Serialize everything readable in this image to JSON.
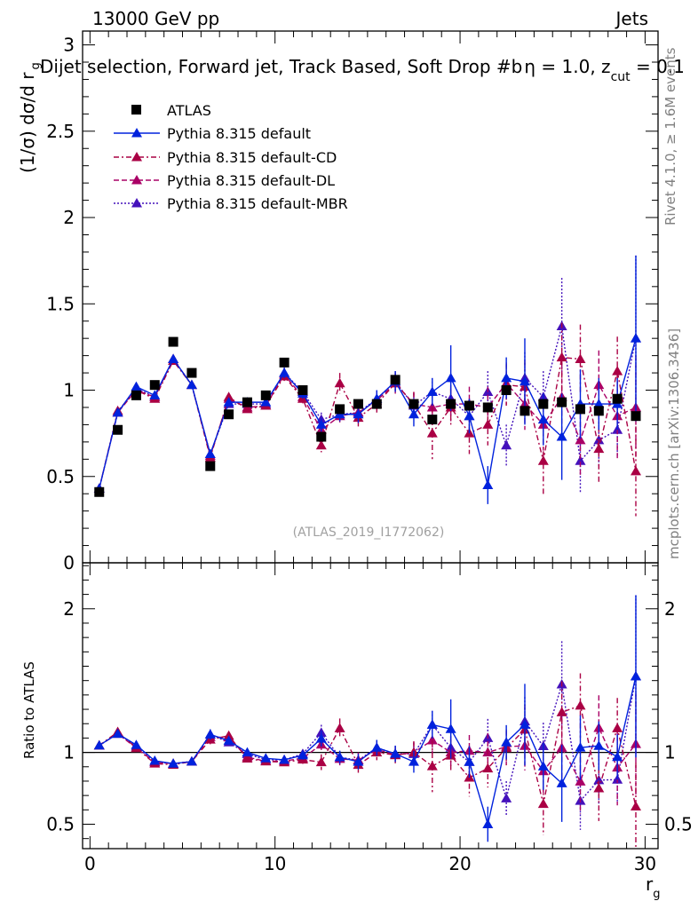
{
  "header": {
    "left": "13000 GeV pp",
    "right": "Jets",
    "title": "Dijet selection, Forward jet, Track Based, Soft Drop #b",
    "title_tail": "η = 1.0, z",
    "title_cut": "cut",
    "title_end": " = 0.1"
  },
  "side": {
    "rivet": "Rivet 4.1.0, ≥ 1.6M events",
    "mcplots": "mcplots.cern.ch [arXiv:1306.3436]"
  },
  "watermark": "(ATLAS_2019_I1772062)",
  "colors": {
    "atlas": "#000000",
    "default": "#0022dd",
    "cd": "#aa0044",
    "dl": "#aa0066",
    "mbr": "#4411bb"
  },
  "chart_data": {
    "type": "line",
    "x": [
      0.5,
      1.5,
      2.5,
      3.5,
      4.5,
      5.5,
      6.5,
      7.5,
      8.5,
      9.5,
      10.5,
      11.5,
      12.5,
      13.5,
      14.5,
      15.5,
      16.5,
      17.5,
      18.5,
      19.5,
      20.5,
      21.5,
      22.5,
      23.5,
      24.5,
      25.5,
      26.5,
      27.5,
      28.5,
      29.5
    ],
    "xlabel": "r",
    "xlabel_sub": "g",
    "xlim": [
      -0.4,
      30.7
    ],
    "xticks": [
      0,
      10,
      20,
      30
    ],
    "main": {
      "ylabel": "(1/σ) dσ/d r",
      "ylabel_sub": "g",
      "ylim": [
        0,
        3.08
      ],
      "yticks": [
        0,
        0.5,
        1,
        1.5,
        2,
        2.5,
        3
      ],
      "ytick_labels": [
        "0",
        "0.5",
        "1",
        "1.5",
        "2",
        "2.5",
        "3"
      ]
    },
    "ratio": {
      "ylabel": "Ratio to ATLAS",
      "ylim": [
        0.33,
        2.32
      ],
      "yticks": [
        0.5,
        1,
        2
      ],
      "ytick_labels": [
        "0.5",
        "1",
        "2"
      ],
      "reference": 1
    },
    "series": [
      {
        "name": "ATLAS",
        "key": "atlas",
        "values": [
          0.41,
          0.77,
          0.97,
          1.03,
          1.28,
          1.1,
          0.56,
          0.86,
          0.93,
          0.97,
          1.16,
          1.0,
          0.73,
          0.89,
          0.92,
          0.92,
          1.06,
          0.92,
          0.83,
          0.92,
          0.91,
          0.9,
          1.0,
          0.88,
          0.92,
          0.93,
          0.89,
          0.88,
          0.95,
          0.85
        ],
        "errors": [
          0.01,
          0.01,
          0.01,
          0.01,
          0.01,
          0.01,
          0.01,
          0.01,
          0.01,
          0.01,
          0.01,
          0.01,
          0.01,
          0.01,
          0.01,
          0.01,
          0.01,
          0.01,
          0.01,
          0.01,
          0.01,
          0.01,
          0.01,
          0.01,
          0.01,
          0.01,
          0.01,
          0.01,
          0.01,
          0.01
        ]
      },
      {
        "name": "Pythia 8.315 default",
        "key": "default",
        "values": [
          0.43,
          0.87,
          1.02,
          0.97,
          1.18,
          1.03,
          0.63,
          0.93,
          0.93,
          0.93,
          1.1,
          0.98,
          0.8,
          0.86,
          0.86,
          0.95,
          1.05,
          0.86,
          0.99,
          1.07,
          0.85,
          0.45,
          1.07,
          1.05,
          0.83,
          0.73,
          0.92,
          0.92,
          0.92,
          1.3
        ],
        "errors": [
          0.01,
          0.02,
          0.02,
          0.02,
          0.02,
          0.02,
          0.02,
          0.02,
          0.02,
          0.02,
          0.03,
          0.03,
          0.04,
          0.04,
          0.05,
          0.05,
          0.06,
          0.07,
          0.08,
          0.19,
          0.1,
          0.11,
          0.12,
          0.25,
          0.15,
          0.25,
          0.2,
          0.15,
          0.15,
          0.48
        ]
      },
      {
        "name": "Pythia 8.315 default-CD",
        "key": "cd",
        "values": [
          0.43,
          0.88,
          1.0,
          0.95,
          1.17,
          1.03,
          0.61,
          0.96,
          0.89,
          0.91,
          1.08,
          0.95,
          0.68,
          1.04,
          0.84,
          0.92,
          1.04,
          0.92,
          0.75,
          0.9,
          0.75,
          0.8,
          1.03,
          1.02,
          0.59,
          1.19,
          1.18,
          0.66,
          1.11,
          0.53
        ],
        "errors": [
          0.01,
          0.02,
          0.02,
          0.02,
          0.02,
          0.02,
          0.02,
          0.02,
          0.02,
          0.02,
          0.03,
          0.03,
          0.04,
          0.06,
          0.05,
          0.05,
          0.06,
          0.07,
          0.15,
          0.1,
          0.12,
          0.12,
          0.12,
          0.15,
          0.2,
          0.2,
          0.2,
          0.2,
          0.2,
          0.26
        ]
      },
      {
        "name": "Pythia 8.315 default-DL",
        "key": "dl",
        "values": [
          0.43,
          0.87,
          1.0,
          0.96,
          1.18,
          1.03,
          0.62,
          0.95,
          0.9,
          0.91,
          1.09,
          0.96,
          0.77,
          0.85,
          0.87,
          0.94,
          1.04,
          0.92,
          0.9,
          0.92,
          0.92,
          0.9,
          1.04,
          0.92,
          0.8,
          0.96,
          0.71,
          1.03,
          0.85,
          0.9
        ],
        "errors": [
          0.01,
          0.02,
          0.02,
          0.02,
          0.02,
          0.02,
          0.02,
          0.02,
          0.02,
          0.02,
          0.03,
          0.03,
          0.04,
          0.04,
          0.05,
          0.05,
          0.06,
          0.07,
          0.08,
          0.1,
          0.1,
          0.12,
          0.12,
          0.15,
          0.15,
          0.2,
          0.2,
          0.2,
          0.25,
          0.3
        ]
      },
      {
        "name": "Pythia 8.315 default-MBR",
        "key": "mbr",
        "values": [
          0.43,
          0.87,
          1.01,
          0.96,
          1.18,
          1.03,
          0.63,
          0.92,
          0.92,
          0.92,
          1.1,
          0.99,
          0.83,
          0.86,
          0.87,
          0.95,
          1.05,
          0.91,
          0.99,
          0.95,
          0.85,
          0.99,
          0.68,
          1.07,
          0.96,
          1.37,
          0.59,
          0.71,
          0.77,
          1.3
        ],
        "errors": [
          0.01,
          0.02,
          0.02,
          0.02,
          0.02,
          0.02,
          0.02,
          0.02,
          0.02,
          0.02,
          0.03,
          0.03,
          0.04,
          0.04,
          0.05,
          0.05,
          0.06,
          0.07,
          0.08,
          0.1,
          0.1,
          0.12,
          0.12,
          0.15,
          0.15,
          0.28,
          0.18,
          0.15,
          0.15,
          0.48
        ]
      }
    ]
  }
}
